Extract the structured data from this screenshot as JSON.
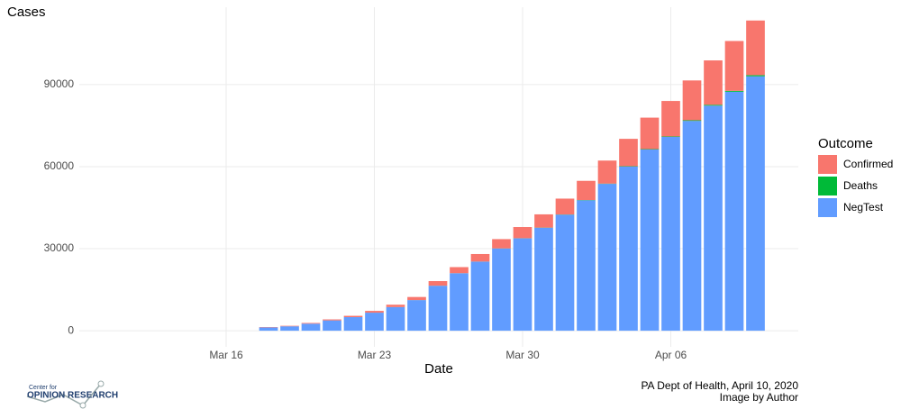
{
  "chart_data": {
    "type": "bar",
    "stacked": true,
    "y_label": "Cases",
    "x_label": "Date",
    "legend_title": "Outcome",
    "legend": "right",
    "caption": [
      "PA Dept of Health, April 10, 2020",
      "Image by Author"
    ],
    "logo": [
      "Center for",
      "OPINION RESEARCH"
    ],
    "categories": [
      "Mar 16",
      null,
      null,
      null,
      null,
      null,
      null,
      "Mar 23",
      null,
      null,
      null,
      null,
      null,
      null,
      "Mar 30",
      null,
      null,
      null,
      null,
      null,
      null,
      "Apr 06",
      null,
      null,
      null,
      null
    ],
    "series": [
      {
        "name": "Confirmed",
        "color": "#F8766D",
        "values": [
          null,
          null,
          133,
          185,
          268,
          371,
          479,
          644,
          851,
          1127,
          1687,
          2218,
          2751,
          3394,
          4087,
          4843,
          5805,
          7016,
          8420,
          10017,
          11510,
          12980,
          14559,
          16239,
          18228,
          19979
        ]
      },
      {
        "name": "Deaths",
        "color": "#00BA38",
        "values": [
          null,
          null,
          1,
          1,
          1,
          2,
          2,
          6,
          7,
          11,
          16,
          22,
          34,
          38,
          49,
          63,
          74,
          90,
          102,
          136,
          150,
          162,
          240,
          309,
          338,
          416
        ]
      },
      {
        "name": "NegTest",
        "color": "#619CFF",
        "values": [
          null,
          null,
          1187,
          1608,
          2574,
          3766,
          4964,
          6595,
          8643,
          11193,
          16441,
          21016,
          25254,
          30061,
          33777,
          37645,
          42427,
          47698,
          53695,
          60013,
          66261,
          70874,
          76719,
          82299,
          87374,
          93040
        ]
      }
    ],
    "ylim": [
      -5900,
      118300
    ],
    "yticks": [
      0,
      30000,
      60000,
      90000
    ],
    "grid": true
  }
}
